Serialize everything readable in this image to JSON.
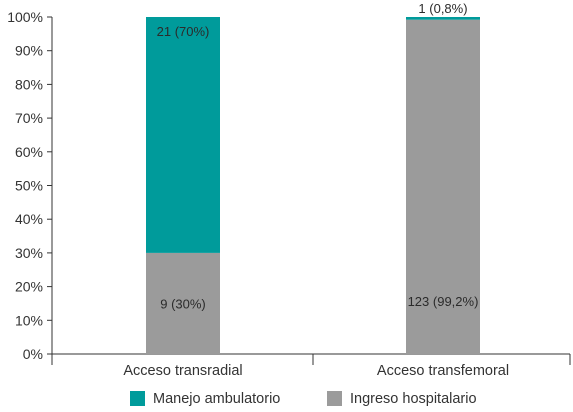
{
  "chart_data": {
    "type": "bar",
    "stacked": true,
    "percent_stacked": true,
    "categories": [
      "Acceso transradial",
      "Acceso transfemoral"
    ],
    "series": [
      {
        "name": "Ingreso hospitalario",
        "color": "#9b9b9b",
        "values": [
          30,
          99.2
        ],
        "labels": [
          "9 (30%)",
          "123 (99,2%)"
        ]
      },
      {
        "name": "Manejo ambulatorio",
        "color": "#009b9b",
        "values": [
          70,
          0.8
        ],
        "labels": [
          "21 (70%)",
          "1 (0,8%)"
        ]
      }
    ],
    "y_ticks": [
      "0%",
      "10%",
      "20%",
      "30%",
      "40%",
      "50%",
      "60%",
      "70%",
      "80%",
      "90%",
      "100%"
    ],
    "ylim": [
      0,
      100
    ],
    "grid": false,
    "legend": {
      "position": "bottom",
      "order": [
        "Manejo ambulatorio",
        "Ingreso hospitalario"
      ]
    }
  }
}
